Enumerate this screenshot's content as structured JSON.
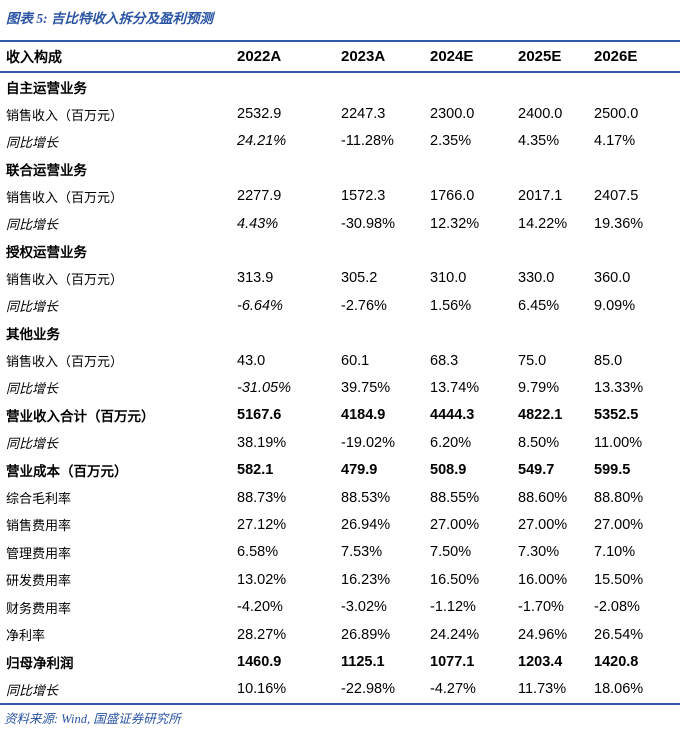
{
  "title": "图表 5: 吉比特收入拆分及盈利预测",
  "footer": "资料来源: Wind, 国盛证券研究所",
  "colors": {
    "accent_blue": "#2b55a4",
    "rule_blue": "#2f5ba7",
    "text": "#000000"
  },
  "table": {
    "header": [
      "收入构成",
      "2022A",
      "2023A",
      "2024E",
      "2025E",
      "2026E"
    ],
    "rows": [
      {
        "label": "自主运营业务",
        "style": "section",
        "values": [
          "",
          "",
          "",
          "",
          ""
        ]
      },
      {
        "label": "销售收入（百万元）",
        "style": "data",
        "values": [
          "2532.9",
          "2247.3",
          "2300.0",
          "2400.0",
          "2500.0"
        ]
      },
      {
        "label": "同比增长",
        "style": "growth",
        "italic_first": true,
        "values": [
          "24.21%",
          "-11.28%",
          "2.35%",
          "4.35%",
          "4.17%"
        ]
      },
      {
        "label": "联合运营业务",
        "style": "section",
        "values": [
          "",
          "",
          "",
          "",
          ""
        ]
      },
      {
        "label": "销售收入（百万元）",
        "style": "data",
        "values": [
          "2277.9",
          "1572.3",
          "1766.0",
          "2017.1",
          "2407.5"
        ]
      },
      {
        "label": "同比增长",
        "style": "growth",
        "italic_first": true,
        "values": [
          "4.43%",
          "-30.98%",
          "12.32%",
          "14.22%",
          "19.36%"
        ]
      },
      {
        "label": "授权运营业务",
        "style": "section",
        "values": [
          "",
          "",
          "",
          "",
          ""
        ]
      },
      {
        "label": "销售收入（百万元）",
        "style": "data",
        "values": [
          "313.9",
          "305.2",
          "310.0",
          "330.0",
          "360.0"
        ]
      },
      {
        "label": "同比增长",
        "style": "growth",
        "italic_first": true,
        "values": [
          "-6.64%",
          "-2.76%",
          "1.56%",
          "6.45%",
          "9.09%"
        ]
      },
      {
        "label": "其他业务",
        "style": "section",
        "values": [
          "",
          "",
          "",
          "",
          ""
        ]
      },
      {
        "label": "销售收入（百万元）",
        "style": "data",
        "values": [
          "43.0",
          "60.1",
          "68.3",
          "75.0",
          "85.0"
        ]
      },
      {
        "label": "同比增长",
        "style": "growth",
        "italic_first": true,
        "values": [
          "-31.05%",
          "39.75%",
          "13.74%",
          "9.79%",
          "13.33%"
        ]
      },
      {
        "label": "营业收入合计（百万元）",
        "style": "total",
        "values": [
          "5167.6",
          "4184.9",
          "4444.3",
          "4822.1",
          "5352.5"
        ]
      },
      {
        "label": "同比增长",
        "style": "growth",
        "values": [
          "38.19%",
          "-19.02%",
          "6.20%",
          "8.50%",
          "11.00%"
        ]
      },
      {
        "label": "营业成本（百万元）",
        "style": "total",
        "values": [
          "582.1",
          "479.9",
          "508.9",
          "549.7",
          "599.5"
        ]
      },
      {
        "label": "综合毛利率",
        "style": "data",
        "values": [
          "88.73%",
          "88.53%",
          "88.55%",
          "88.60%",
          "88.80%"
        ]
      },
      {
        "label": "销售费用率",
        "style": "data",
        "values": [
          "27.12%",
          "26.94%",
          "27.00%",
          "27.00%",
          "27.00%"
        ]
      },
      {
        "label": "管理费用率",
        "style": "data",
        "values": [
          "6.58%",
          "7.53%",
          "7.50%",
          "7.30%",
          "7.10%"
        ]
      },
      {
        "label": "研发费用率",
        "style": "data",
        "values": [
          "13.02%",
          "16.23%",
          "16.50%",
          "16.00%",
          "15.50%"
        ]
      },
      {
        "label": "财务费用率",
        "style": "data",
        "values": [
          "-4.20%",
          "-3.02%",
          "-1.12%",
          "-1.70%",
          "-2.08%"
        ]
      },
      {
        "label": "净利率",
        "style": "data",
        "values": [
          "28.27%",
          "26.89%",
          "24.24%",
          "24.96%",
          "26.54%"
        ]
      },
      {
        "label": "归母净利润",
        "style": "total",
        "values": [
          "1460.9",
          "1125.1",
          "1077.1",
          "1203.4",
          "1420.8"
        ]
      },
      {
        "label": "同比增长",
        "style": "growth",
        "values": [
          "10.16%",
          "-22.98%",
          "-4.27%",
          "11.73%",
          "18.06%"
        ]
      }
    ]
  }
}
